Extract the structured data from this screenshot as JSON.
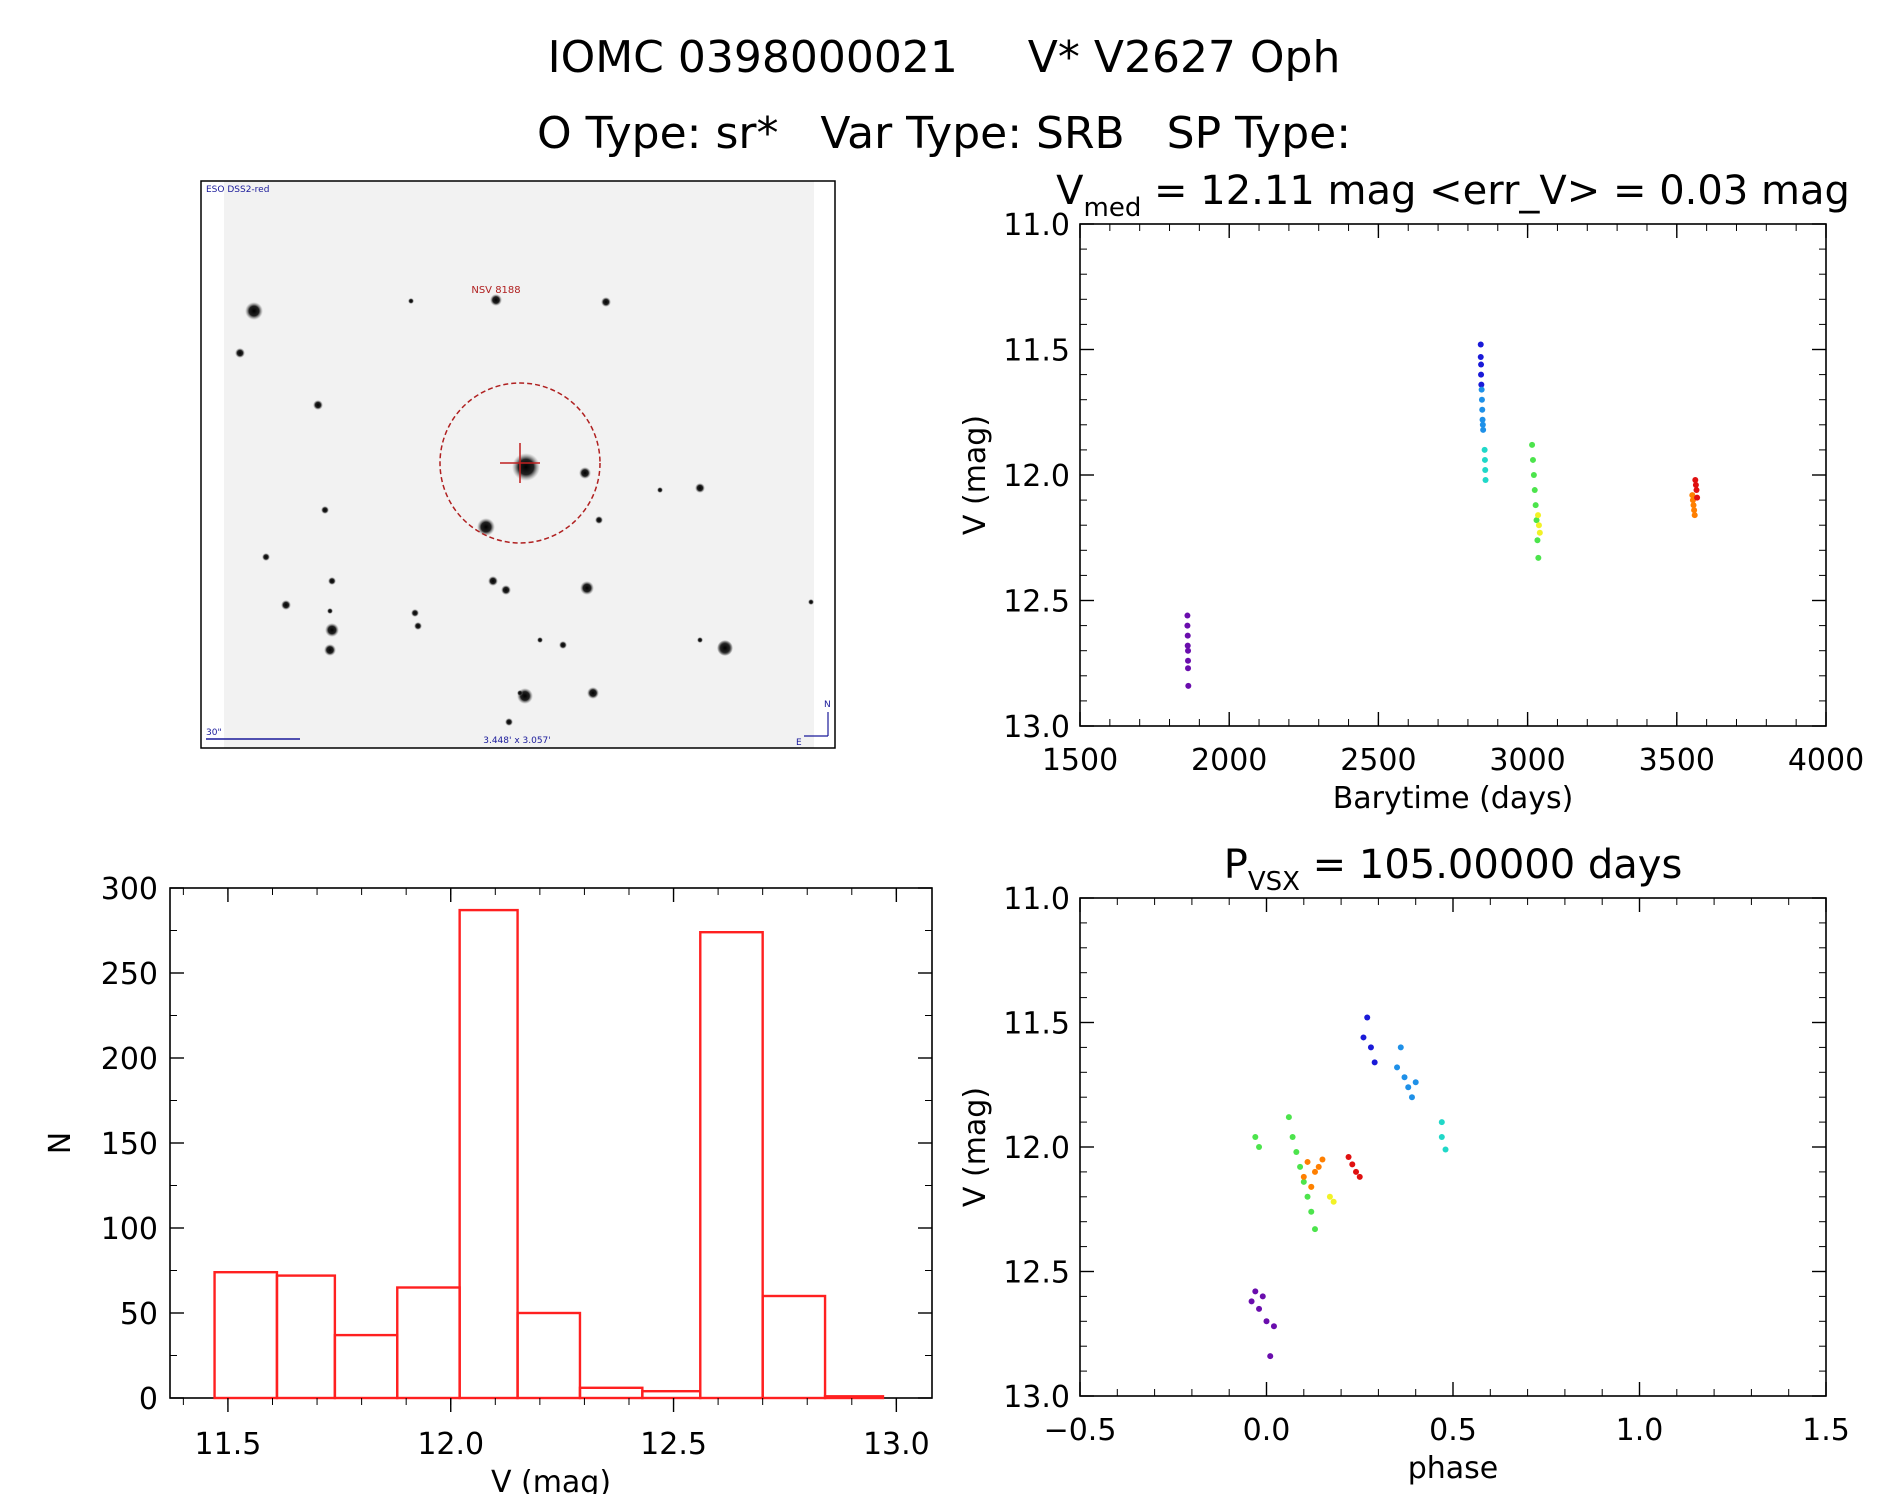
{
  "header": {
    "title": "IOMC 0398000021     V* V2627 Oph",
    "subtitle": "O Type: sr*   Var Type: SRB   SP Type:"
  },
  "finder": {
    "survey_label": "ESO DSS2-red",
    "target_label": "NSV 8188",
    "scale_label": "30\"",
    "fov_label": "3.448' x 3.057'",
    "north_label": "N",
    "east_label": "E"
  },
  "colors": {
    "purple": "#6a0dad",
    "blue": "#1a1ad8",
    "skyblue": "#1e90e8",
    "cyan": "#20d8c8",
    "green": "#4ce44c",
    "yellow": "#f2f226",
    "orange": "#ff7f00",
    "red": "#e01010",
    "hist": "#ff2020"
  },
  "chart_data": [
    {
      "id": "lightcurve",
      "type": "scatter",
      "title_prefix": "V",
      "title_sub": "med",
      "title_rest": " = 12.11 mag <err_V> = 0.03 mag",
      "xlabel": "Barytime (days)",
      "ylabel": "V (mag)",
      "xlim": [
        1500,
        4000
      ],
      "ylim": [
        13.0,
        11.0
      ],
      "xticks": [
        1500,
        2000,
        2500,
        3000,
        3500,
        4000
      ],
      "xtick_labels": [
        "1500",
        "2000",
        "2500",
        "3000",
        "3500",
        "4000"
      ],
      "yticks": [
        11.0,
        11.5,
        12.0,
        12.5,
        13.0
      ],
      "ytick_labels": [
        "11.0",
        "11.5",
        "12.0",
        "12.5",
        "13.0"
      ],
      "series": [
        {
          "name": "purple",
          "x": [
            1860,
            1860,
            1861,
            1861,
            1862,
            1862,
            1862,
            1863
          ],
          "y": [
            12.56,
            12.6,
            12.64,
            12.68,
            12.7,
            12.74,
            12.77,
            12.84
          ]
        },
        {
          "name": "blue",
          "x": [
            2843,
            2843,
            2844,
            2844,
            2845
          ],
          "y": [
            11.48,
            11.53,
            11.56,
            11.6,
            11.64
          ]
        },
        {
          "name": "skyblue",
          "x": [
            2846,
            2847,
            2848,
            2849,
            2850,
            2851
          ],
          "y": [
            11.66,
            11.7,
            11.74,
            11.78,
            11.8,
            11.82
          ]
        },
        {
          "name": "cyan",
          "x": [
            2856,
            2857,
            2858,
            2859
          ],
          "y": [
            11.9,
            11.94,
            11.98,
            12.02
          ]
        },
        {
          "name": "green",
          "x": [
            3015,
            3018,
            3021,
            3024,
            3027,
            3030,
            3033,
            3036
          ],
          "y": [
            11.88,
            11.94,
            12.0,
            12.06,
            12.12,
            12.18,
            12.26,
            12.33
          ]
        },
        {
          "name": "yellow",
          "x": [
            3035,
            3038,
            3041
          ],
          "y": [
            12.16,
            12.2,
            12.23
          ]
        },
        {
          "name": "orange",
          "x": [
            3552,
            3554,
            3556,
            3558,
            3560
          ],
          "y": [
            12.08,
            12.1,
            12.12,
            12.14,
            12.16
          ]
        },
        {
          "name": "red",
          "x": [
            3562,
            3564,
            3566,
            3568
          ],
          "y": [
            12.02,
            12.04,
            12.06,
            12.09
          ]
        }
      ]
    },
    {
      "id": "phaseplot",
      "type": "scatter",
      "title_prefix": "P",
      "title_sub": "VSX",
      "title_rest": " = 105.00000 days",
      "xlabel": "phase",
      "ylabel": "V (mag)",
      "xlim": [
        -0.5,
        1.5
      ],
      "ylim": [
        13.0,
        11.0
      ],
      "xticks": [
        -0.5,
        0.0,
        0.5,
        1.0,
        1.5
      ],
      "xtick_labels": [
        "−0.5",
        "0.0",
        "0.5",
        "1.0",
        "1.5"
      ],
      "yticks": [
        11.0,
        11.5,
        12.0,
        12.5,
        13.0
      ],
      "ytick_labels": [
        "11.0",
        "11.5",
        "12.0",
        "12.5",
        "13.0"
      ],
      "series": [
        {
          "name": "purple",
          "x": [
            -0.04,
            -0.03,
            -0.02,
            -0.01,
            0.0,
            0.01,
            0.02
          ],
          "y": [
            12.62,
            12.58,
            12.65,
            12.6,
            12.7,
            12.84,
            12.72
          ]
        },
        {
          "name": "blue",
          "x": [
            0.26,
            0.27,
            0.28,
            0.29
          ],
          "y": [
            11.56,
            11.48,
            11.6,
            11.66
          ]
        },
        {
          "name": "skyblue",
          "x": [
            0.35,
            0.36,
            0.37,
            0.38,
            0.39,
            0.4
          ],
          "y": [
            11.68,
            11.6,
            11.72,
            11.76,
            11.8,
            11.74
          ]
        },
        {
          "name": "cyan",
          "x": [
            0.47,
            0.47,
            0.48
          ],
          "y": [
            11.9,
            11.96,
            12.01
          ]
        },
        {
          "name": "green",
          "x": [
            -0.03,
            -0.02,
            0.06,
            0.07,
            0.08,
            0.09,
            0.1,
            0.11,
            0.12,
            0.13
          ],
          "y": [
            11.96,
            12.0,
            11.88,
            11.96,
            12.02,
            12.08,
            12.14,
            12.2,
            12.26,
            12.33
          ]
        },
        {
          "name": "yellow",
          "x": [
            0.12,
            0.17,
            0.18
          ],
          "y": [
            12.16,
            12.2,
            12.22
          ]
        },
        {
          "name": "orange",
          "x": [
            0.1,
            0.11,
            0.12,
            0.13,
            0.14,
            0.15
          ],
          "y": [
            12.12,
            12.06,
            12.16,
            12.1,
            12.08,
            12.05
          ]
        },
        {
          "name": "red",
          "x": [
            0.22,
            0.23,
            0.24,
            0.25
          ],
          "y": [
            12.04,
            12.07,
            12.1,
            12.12
          ]
        }
      ]
    },
    {
      "id": "histogram",
      "type": "bar",
      "xlabel": "V (mag)",
      "ylabel": "N",
      "xlim": [
        11.37,
        13.08
      ],
      "ylim": [
        0,
        300
      ],
      "xticks": [
        11.5,
        12.0,
        12.5,
        13.0
      ],
      "xtick_labels": [
        "11.5",
        "12.0",
        "12.5",
        "13.0"
      ],
      "yticks": [
        0,
        50,
        100,
        150,
        200,
        250,
        300
      ],
      "ytick_labels": [
        "0",
        "50",
        "100",
        "150",
        "200",
        "250",
        "300"
      ],
      "bin_edges": [
        11.47,
        11.61,
        11.74,
        11.88,
        12.02,
        12.15,
        12.29,
        12.43,
        12.56,
        12.7,
        12.84,
        12.97
      ],
      "values": [
        74,
        72,
        37,
        65,
        287,
        50,
        6,
        4,
        274,
        60,
        1
      ]
    }
  ]
}
